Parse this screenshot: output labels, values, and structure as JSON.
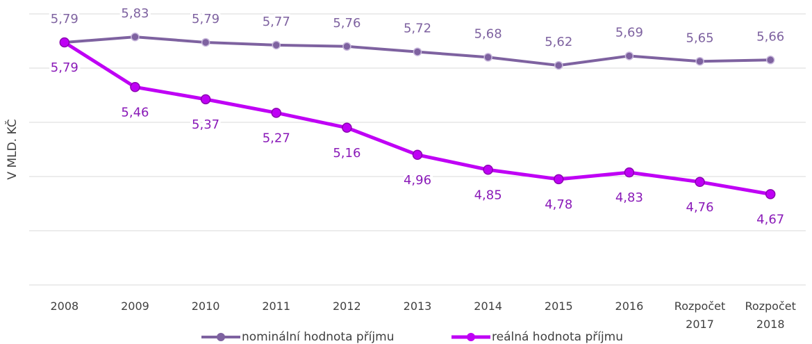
{
  "chart_data": {
    "type": "line",
    "y_label": "V MLD. KČ",
    "categories": [
      "2008",
      "2009",
      "2010",
      "2011",
      "2012",
      "2013",
      "2014",
      "2015",
      "2016",
      "Rozpočet 2017",
      "Rozpočet 2018"
    ],
    "series": [
      {
        "name": "nominální hodnota příjmu",
        "color": "#7e62a0",
        "values": [
          5.79,
          5.83,
          5.79,
          5.77,
          5.76,
          5.72,
          5.68,
          5.62,
          5.69,
          5.65,
          5.66
        ],
        "value_labels": [
          "5,79",
          "5,83",
          "5,79",
          "5,77",
          "5,76",
          "5,72",
          "5,68",
          "5,62",
          "5,69",
          "5,65",
          "5,66"
        ]
      },
      {
        "name": "reálná hodnota příjmu",
        "color": "#bf00f5",
        "values": [
          5.79,
          5.46,
          5.37,
          5.27,
          5.16,
          4.96,
          4.85,
          4.78,
          4.83,
          4.76,
          4.67
        ],
        "value_labels": [
          "5,79",
          "5,46",
          "5,37",
          "5,27",
          "5,16",
          "4,96",
          "4,85",
          "4,78",
          "4,83",
          "4,76",
          "4,67"
        ]
      }
    ],
    "ylim": [
      4.0,
      6.0
    ],
    "yticks": [
      4.0,
      4.4,
      4.8,
      5.2,
      5.6,
      6.0
    ],
    "grid": true
  }
}
